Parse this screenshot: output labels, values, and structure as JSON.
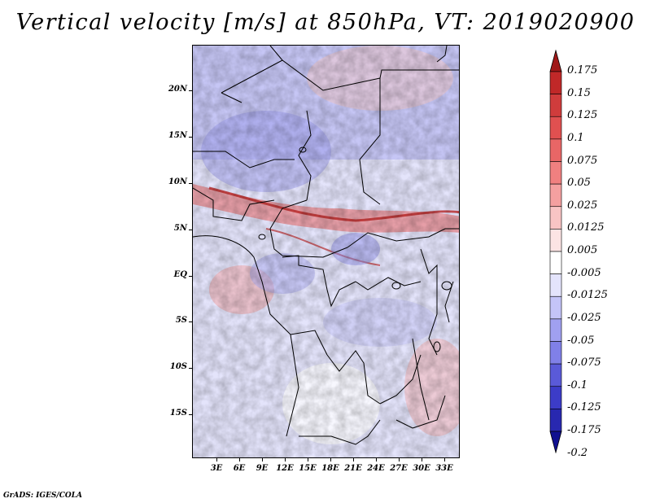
{
  "title": "Vertical velocity [m/s] at 850hPa, VT: 2019020900",
  "credit": "GrADS: IGES/COLA",
  "map": {
    "region": "Central Africa",
    "lat_labels": [
      "20N",
      "15N",
      "10N",
      "5N",
      "EQ",
      "5S",
      "10S",
      "15S"
    ],
    "lon_labels": [
      "3E",
      "6E",
      "9E",
      "12E",
      "15E",
      "18E",
      "21E",
      "24E",
      "27E",
      "30E",
      "33E"
    ]
  },
  "colorbar": {
    "labels": [
      "0.175",
      "0.15",
      "0.125",
      "0.1",
      "0.075",
      "0.05",
      "0.025",
      "0.0125",
      "0.005",
      "-0.005",
      "-0.0125",
      "-0.025",
      "-0.05",
      "-0.075",
      "-0.1",
      "-0.125",
      "-0.175",
      "-0.2"
    ],
    "colors": [
      "#a01818",
      "#c02828",
      "#d03c3c",
      "#e05050",
      "#e86666",
      "#f08080",
      "#f4a0a0",
      "#f8c4c4",
      "#fce4e4",
      "#ffffff",
      "#e4e4fc",
      "#c4c4f8",
      "#a0a0f0",
      "#8080e8",
      "#5a5ad8",
      "#3c3cc8",
      "#2828b0",
      "#101090"
    ]
  }
}
